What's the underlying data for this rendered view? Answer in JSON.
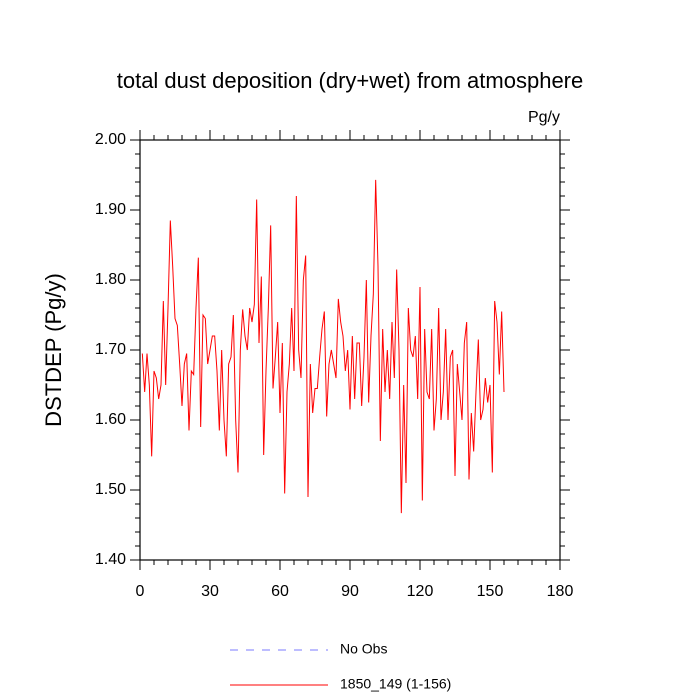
{
  "chart_data": {
    "type": "line",
    "title": "total dust deposition (dry+wet) from atmosphere",
    "units": "Pg/y",
    "y_label": "DSTDEP  (Pg/y)",
    "xlim": [
      0,
      180
    ],
    "xticks": [
      0,
      30,
      60,
      90,
      120,
      150,
      180
    ],
    "ylim": [
      1.4,
      2.0
    ],
    "yticks": [
      {
        "value": 1.4,
        "label": "1.40"
      },
      {
        "value": 1.5,
        "label": "1.50"
      },
      {
        "value": 1.6,
        "label": "1.60"
      },
      {
        "value": 1.7,
        "label": "1.70"
      },
      {
        "value": 1.8,
        "label": "1.80"
      },
      {
        "value": 1.9,
        "label": "1.90"
      },
      {
        "value": 2.0,
        "label": "2.00"
      }
    ],
    "minor_per_major": 5,
    "legend": [
      {
        "name": "No Obs",
        "color": "#7b7bff",
        "dash": "8 8"
      }
    ],
    "x": [
      1,
      2,
      3,
      4,
      5,
      6,
      7,
      8,
      9,
      10,
      11,
      12,
      13,
      14,
      15,
      16,
      17,
      18,
      19,
      20,
      21,
      22,
      23,
      24,
      25,
      26,
      27,
      28,
      29,
      30,
      31,
      32,
      33,
      34,
      35,
      36,
      37,
      38,
      39,
      40,
      41,
      42,
      43,
      44,
      45,
      46,
      47,
      48,
      49,
      50,
      51,
      52,
      53,
      54,
      55,
      56,
      57,
      58,
      59,
      60,
      61,
      62,
      63,
      64,
      65,
      66,
      67,
      68,
      69,
      70,
      71,
      72,
      73,
      74,
      75,
      76,
      77,
      78,
      79,
      80,
      81,
      82,
      83,
      84,
      85,
      86,
      87,
      88,
      89,
      90,
      91,
      92,
      93,
      94,
      95,
      96,
      97,
      98,
      99,
      100,
      101,
      102,
      103,
      104,
      105,
      106,
      107,
      108,
      109,
      110,
      111,
      112,
      113,
      114,
      115,
      116,
      117,
      118,
      119,
      120,
      121,
      122,
      123,
      124,
      125,
      126,
      127,
      128,
      129,
      130,
      131,
      132,
      133,
      134,
      135,
      136,
      137,
      138,
      139,
      140,
      141,
      142,
      143,
      144,
      145,
      146,
      147,
      148,
      149,
      150,
      151,
      152,
      153,
      154,
      155,
      156
    ],
    "series": [
      {
        "name": "1850_149 (1-156)",
        "color": "#ff0000",
        "values": [
          1.695,
          1.64,
          1.695,
          1.65,
          1.548,
          1.67,
          1.66,
          1.63,
          1.65,
          1.77,
          1.65,
          1.76,
          1.885,
          1.82,
          1.745,
          1.735,
          1.68,
          1.62,
          1.68,
          1.695,
          1.585,
          1.67,
          1.665,
          1.76,
          1.832,
          1.59,
          1.75,
          1.745,
          1.68,
          1.7,
          1.72,
          1.72,
          1.67,
          1.585,
          1.7,
          1.6,
          1.548,
          1.68,
          1.69,
          1.75,
          1.6,
          1.525,
          1.7,
          1.758,
          1.72,
          1.7,
          1.76,
          1.74,
          1.765,
          1.915,
          1.71,
          1.805,
          1.55,
          1.67,
          1.76,
          1.878,
          1.645,
          1.69,
          1.74,
          1.61,
          1.71,
          1.495,
          1.64,
          1.68,
          1.76,
          1.67,
          1.92,
          1.7,
          1.66,
          1.8,
          1.835,
          1.49,
          1.68,
          1.61,
          1.645,
          1.645,
          1.69,
          1.73,
          1.755,
          1.605,
          1.68,
          1.7,
          1.68,
          1.66,
          1.773,
          1.74,
          1.72,
          1.67,
          1.7,
          1.615,
          1.72,
          1.63,
          1.71,
          1.71,
          1.62,
          1.69,
          1.8,
          1.625,
          1.72,
          1.78,
          1.943,
          1.82,
          1.57,
          1.73,
          1.64,
          1.7,
          1.63,
          1.74,
          1.66,
          1.815,
          1.7,
          1.467,
          1.65,
          1.51,
          1.76,
          1.7,
          1.69,
          1.72,
          1.63,
          1.79,
          1.485,
          1.73,
          1.64,
          1.63,
          1.73,
          1.585,
          1.63,
          1.76,
          1.6,
          1.64,
          1.73,
          1.6,
          1.69,
          1.7,
          1.52,
          1.68,
          1.64,
          1.6,
          1.71,
          1.74,
          1.515,
          1.61,
          1.555,
          1.64,
          1.715,
          1.6,
          1.615,
          1.66,
          1.625,
          1.65,
          1.525,
          1.77,
          1.74,
          1.665,
          1.755,
          1.64
        ]
      }
    ]
  }
}
